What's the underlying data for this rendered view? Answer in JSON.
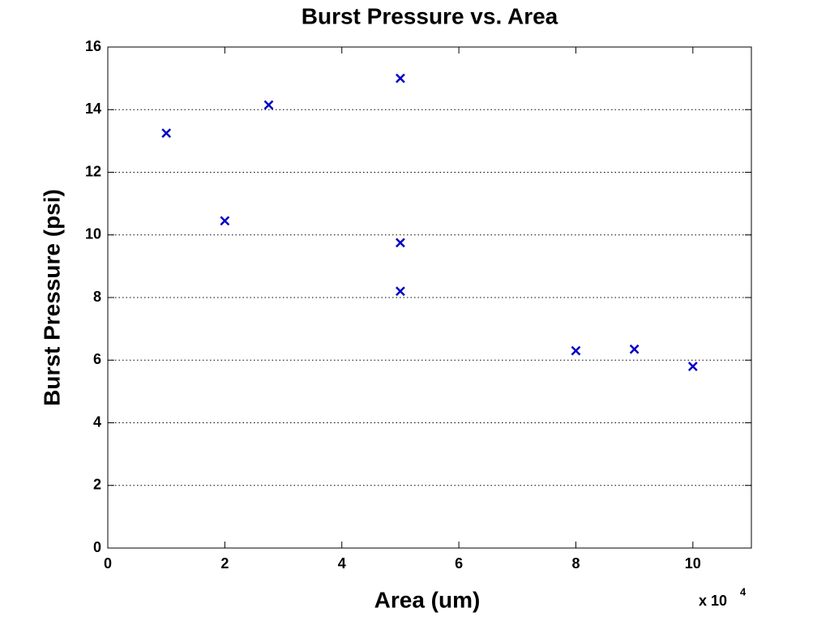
{
  "chart_data": {
    "type": "scatter",
    "title": "Burst Pressure vs. Area",
    "x_label": "Area (um)",
    "y_label": "Burst Pressure (psi)",
    "x_multiplier": {
      "base": "x 10",
      "exponent": "4"
    },
    "x": [
      10000,
      20000,
      27500,
      50000,
      50000,
      50000,
      80000,
      90000,
      100000
    ],
    "values": [
      13.25,
      10.45,
      14.15,
      15.0,
      9.75,
      8.2,
      6.3,
      6.35,
      5.8
    ],
    "color": "#0000c8",
    "marker": "x",
    "xlim": [
      0,
      110000
    ],
    "ylim": [
      0,
      16
    ],
    "xticks": [
      0,
      {
        "value": 20000,
        "label": "2"
      },
      {
        "value": 40000,
        "label": "4"
      },
      {
        "value": 60000,
        "label": "6"
      },
      {
        "value": 80000,
        "label": "8"
      },
      {
        "value": 100000,
        "label": "10"
      }
    ],
    "yticks": [
      0,
      2,
      4,
      6,
      8,
      10,
      12,
      14,
      16
    ],
    "grid": "y"
  }
}
